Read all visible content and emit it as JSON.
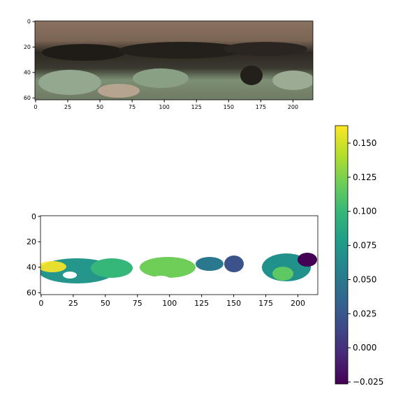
{
  "chart_data": [
    {
      "type": "image",
      "xlim": [
        -0.5,
        215.5
      ],
      "ylim": [
        61.5,
        -0.5
      ],
      "xticks": [
        0,
        25,
        50,
        75,
        100,
        125,
        150,
        175,
        200
      ],
      "yticks": [
        0,
        20,
        40,
        60
      ]
    },
    {
      "type": "heatmap",
      "xlim": [
        -0.5,
        215.5
      ],
      "ylim": [
        61.5,
        -0.5
      ],
      "xticks": [
        0,
        25,
        50,
        75,
        100,
        125,
        150,
        175,
        200
      ],
      "yticks": [
        0,
        20,
        40,
        60
      ]
    },
    {
      "type": "colorbar",
      "colormap": "viridis",
      "ylim": [
        -0.0265,
        0.1628
      ],
      "yticks": [
        {
          "value": 0.15,
          "label": "0.150"
        },
        {
          "value": 0.125,
          "label": "0.125"
        },
        {
          "value": 0.1,
          "label": "0.100"
        },
        {
          "value": 0.075,
          "label": "0.075"
        },
        {
          "value": 0.05,
          "label": "0.050"
        },
        {
          "value": 0.025,
          "label": "0.025"
        },
        {
          "value": 0,
          "label": "0.000"
        },
        {
          "value": -0.025,
          "label": "−0.025"
        }
      ]
    }
  ]
}
